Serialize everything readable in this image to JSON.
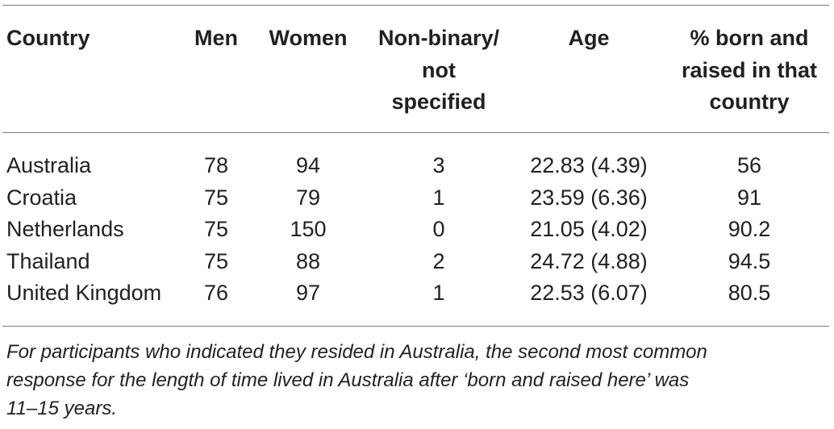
{
  "table": {
    "headers": {
      "country": "Country",
      "men": "Men",
      "women": "Women",
      "nonbinary": [
        "Non-binary/",
        "not",
        "specified"
      ],
      "age": "Age",
      "born": [
        "% born and",
        "raised in that",
        "country"
      ]
    },
    "rows": [
      {
        "country": "Australia",
        "men": "78",
        "women": "94",
        "nonbinary": "3",
        "age": "22.83 (4.39)",
        "born": "56"
      },
      {
        "country": "Croatia",
        "men": "75",
        "women": "79",
        "nonbinary": "1",
        "age": "23.59 (6.36)",
        "born": "91"
      },
      {
        "country": "Netherlands",
        "men": "75",
        "women": "150",
        "nonbinary": "0",
        "age": "21.05 (4.02)",
        "born": "90.2"
      },
      {
        "country": "Thailand",
        "men": "75",
        "women": "88",
        "nonbinary": "2",
        "age": "24.72 (4.88)",
        "born": "94.5"
      },
      {
        "country": "United Kingdom",
        "men": "76",
        "women": "97",
        "nonbinary": "1",
        "age": "22.53 (6.07)",
        "born": "80.5"
      }
    ],
    "footnote": [
      "For participants who indicated they resided in Australia, the second most common",
      "response for the length of time lived in Australia after ‘born and raised here’ was",
      "11–15 years."
    ]
  }
}
